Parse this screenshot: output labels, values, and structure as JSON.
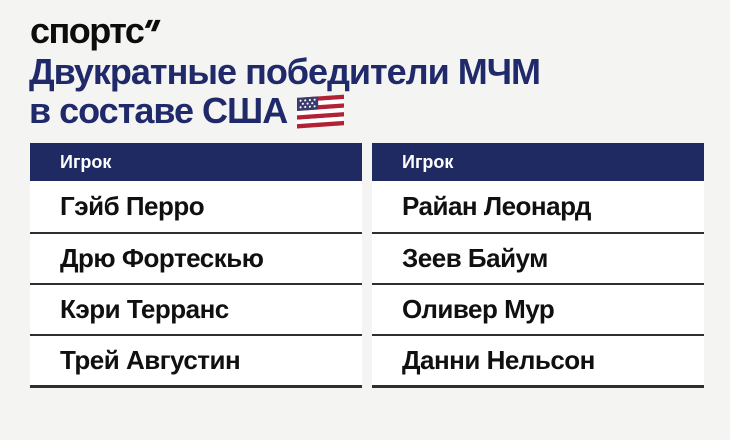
{
  "logo": {
    "text": "спортс",
    "mark_icon": "double-prime-flag-icon"
  },
  "title": {
    "line1": "Двукратные победители МЧМ",
    "line2": "в составе США",
    "flag_icon": "us-flag-icon"
  },
  "columns": [
    {
      "header": "Игрок",
      "rows": [
        "Гэйб Перро",
        "Дрю Фортескью",
        "Кэри Терранс",
        "Трей Августин"
      ]
    },
    {
      "header": "Игрок",
      "rows": [
        "Райан Леонард",
        "Зеев Байум",
        "Оливер Мур",
        "Данни Нельсон"
      ]
    }
  ],
  "chart_data": {
    "type": "table",
    "title": "Двукратные победители МЧМ в составе США",
    "tables": [
      {
        "columns": [
          "Игрок"
        ],
        "rows": [
          [
            "Гэйб Перро"
          ],
          [
            "Дрю Фортескью"
          ],
          [
            "Кэри Терранс"
          ],
          [
            "Трей Августин"
          ]
        ]
      },
      {
        "columns": [
          "Игрок"
        ],
        "rows": [
          [
            "Райан Леонард"
          ],
          [
            "Зеев Байум"
          ],
          [
            "Оливер Мур"
          ],
          [
            "Данни Нельсон"
          ]
        ]
      }
    ]
  },
  "colors": {
    "background": "#f4f4f3",
    "navy_header": "#1f2a63",
    "navy_title": "#20296a",
    "divider": "#2f2f2f",
    "row_text": "#101010",
    "flag_red": "#b22234",
    "flag_blue": "#3c3b6e",
    "flag_white": "#ffffff"
  }
}
